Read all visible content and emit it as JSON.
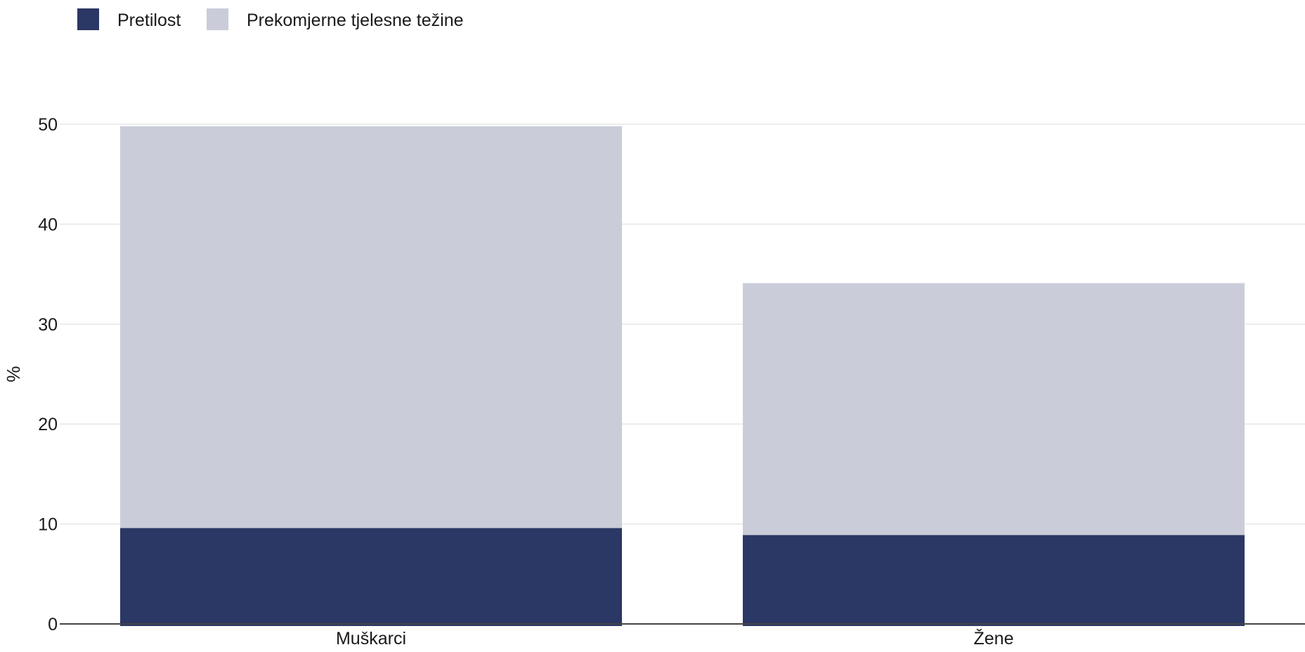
{
  "chart_data": {
    "type": "bar",
    "stacked": true,
    "categories": [
      "Muškarci",
      "Žene"
    ],
    "series": [
      {
        "name": "Pretilost",
        "values": [
          9.6,
          8.9
        ],
        "color": "#2b3764"
      },
      {
        "name": "Prekomjerne tjelesne težine",
        "values": [
          40.2,
          25.2
        ],
        "color": "#cacdd9"
      }
    ],
    "ylabel": "%",
    "xlabel": "",
    "ylim": [
      0,
      50
    ],
    "yticks": [
      0,
      10,
      20,
      30,
      40,
      50
    ],
    "grid": true,
    "legend": "top-left"
  }
}
